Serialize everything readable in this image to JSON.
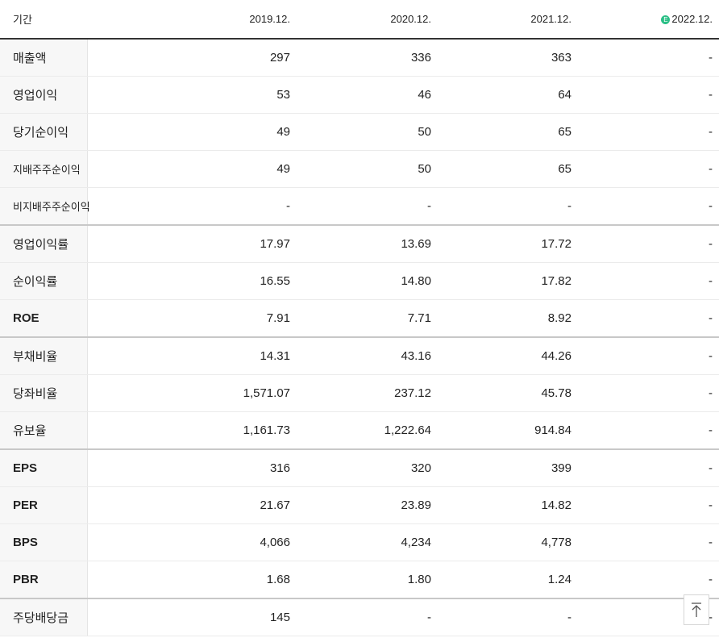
{
  "header": {
    "label": "기간",
    "estimate_badge": "E",
    "periods": [
      "2019.12.",
      "2020.12.",
      "2021.12.",
      "2022.12."
    ]
  },
  "rows": [
    {
      "label": "매출액",
      "values": [
        "297",
        "336",
        "363",
        "-"
      ]
    },
    {
      "label": "영업이익",
      "values": [
        "53",
        "46",
        "64",
        "-"
      ]
    },
    {
      "label": "당기순이익",
      "values": [
        "49",
        "50",
        "65",
        "-"
      ]
    },
    {
      "label": "지배주주순이익",
      "values": [
        "49",
        "50",
        "65",
        "-"
      ]
    },
    {
      "label": "비지배주주순이익",
      "values": [
        "-",
        "-",
        "-",
        "-"
      ]
    },
    {
      "label": "영업이익률",
      "values": [
        "17.97",
        "13.69",
        "17.72",
        "-"
      ]
    },
    {
      "label": "순이익률",
      "values": [
        "16.55",
        "14.80",
        "17.82",
        "-"
      ]
    },
    {
      "label": "ROE",
      "values": [
        "7.91",
        "7.71",
        "8.92",
        "-"
      ]
    },
    {
      "label": "부채비율",
      "values": [
        "14.31",
        "43.16",
        "44.26",
        "-"
      ]
    },
    {
      "label": "당좌비율",
      "values": [
        "1,571.07",
        "237.12",
        "45.78",
        "-"
      ]
    },
    {
      "label": "유보율",
      "values": [
        "1,161.73",
        "1,222.64",
        "914.84",
        "-"
      ]
    },
    {
      "label": "EPS",
      "values": [
        "316",
        "320",
        "399",
        "-"
      ]
    },
    {
      "label": "PER",
      "values": [
        "21.67",
        "23.89",
        "14.82",
        "-"
      ]
    },
    {
      "label": "BPS",
      "values": [
        "4,066",
        "4,234",
        "4,778",
        "-"
      ]
    },
    {
      "label": "PBR",
      "values": [
        "1.68",
        "1.80",
        "1.24",
        "-"
      ]
    },
    {
      "label": "주당배당금",
      "values": [
        "145",
        "-",
        "-",
        "-"
      ]
    }
  ],
  "scroll_top": {
    "icon": "arrow-up-to-top-icon"
  }
}
